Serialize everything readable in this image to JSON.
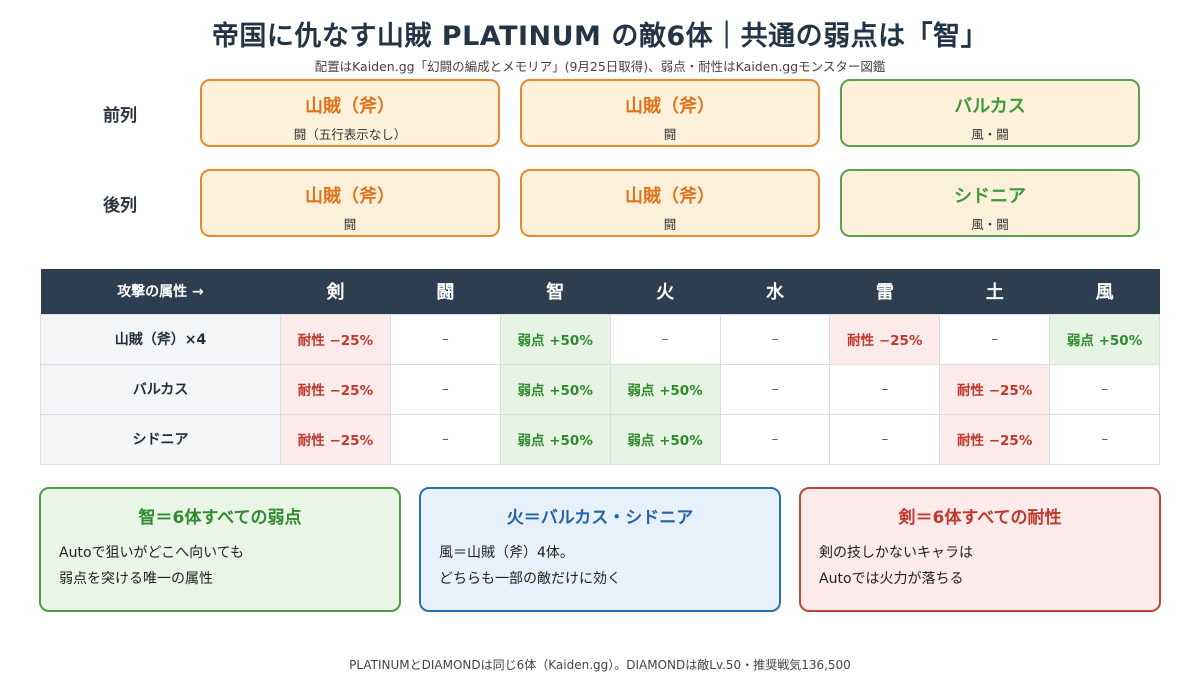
{
  "header": {
    "title": "帝国に仇なす山賊 PLATINUM の敵6体｜共通の弱点は「智」",
    "subtitle": "配置はKaiden.gg「幻闘の編成とメモリア」(9月25日取得)、弱点・耐性はKaiden.ggモンスター図鑑"
  },
  "formation": {
    "front_label": "前列",
    "back_label": "後列",
    "front": [
      {
        "name": "山賊（斧）",
        "attr": "闘（五行表示なし）"
      },
      {
        "name": "山賊（斧）",
        "attr": "闘"
      },
      {
        "name": "バルカス",
        "attr": "風・闘"
      }
    ],
    "back": [
      {
        "name": "山賊（斧）",
        "attr": "闘"
      },
      {
        "name": "山賊（斧）",
        "attr": "闘"
      },
      {
        "name": "シドニア",
        "attr": "風・闘"
      }
    ]
  },
  "table": {
    "corner": "攻撃の属性 →",
    "columns": [
      "剣",
      "闘",
      "智",
      "火",
      "水",
      "雷",
      "土",
      "風"
    ],
    "rows": [
      {
        "name": "山賊（斧）×4",
        "cells": [
          "耐性 −25%",
          "–",
          "弱点 +50%",
          "–",
          "–",
          "耐性 −25%",
          "–",
          "弱点 +50%"
        ]
      },
      {
        "name": "バルカス",
        "cells": [
          "耐性 −25%",
          "–",
          "弱点 +50%",
          "弱点 +50%",
          "–",
          "–",
          "耐性 −25%",
          "–"
        ]
      },
      {
        "name": "シドニア",
        "cells": [
          "耐性 −25%",
          "–",
          "弱点 +50%",
          "弱点 +50%",
          "–",
          "–",
          "耐性 −25%",
          "–"
        ]
      }
    ]
  },
  "notes": [
    {
      "title": "智＝6体すべての弱点",
      "line1": "Autoで狙いがどこへ向いても",
      "line2": "弱点を突ける唯一の属性"
    },
    {
      "title": "火＝バルカス・シドニア",
      "line1": "風＝山賊（斧）4体。",
      "line2": "どちらも一部の敵だけに効く"
    },
    {
      "title": "剣＝6体すべての耐性",
      "line1": "剣の技しかないキャラは",
      "line2": "Autoでは火力が落ちる"
    }
  ],
  "footer": "PLATINUMとDIAMONDは同じ6体（Kaiden.gg）。DIAMONDは敵Lv.50・推奨戦気136,500",
  "colors": {
    "header_dark": "#2d3e50",
    "orange_border": "#e98a2a",
    "green_border": "#59a14f",
    "weak_text": "#2f8a2f",
    "resist_text": "#c0392b",
    "blue_border": "#2e6fb0"
  }
}
